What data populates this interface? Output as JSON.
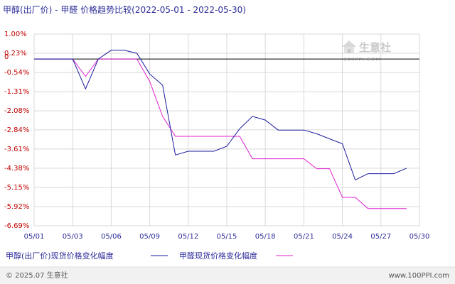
{
  "header": {
    "title": "甲醇(出厂价) - 甲醛 价格趋势比较(2022-05-01 - 2022-05-30)"
  },
  "watermark": {
    "name": "生意社",
    "url": "100PPI.COM"
  },
  "footer": {
    "copyright": "© 2025.07 生意社",
    "site": "www.100PPI.com"
  },
  "colors": {
    "series1": "#1a1a9e",
    "series2": "#e020d0",
    "grid": "#d8d8d8",
    "zero_line": "#000000"
  },
  "chart_data": {
    "type": "line",
    "title": "甲醇(出厂价) - 甲醛 价格趋势比较(2022-05-01 - 2022-05-30)",
    "xlabel": "",
    "ylabel": "",
    "x_start_day": 1,
    "x_end_day": 30,
    "ylim": [
      -6.69,
      1.0
    ],
    "y_ticks": [
      "1.00%",
      "0.23%",
      "-0.54%",
      "-1.31%",
      "-2.08%",
      "-2.84%",
      "-3.61%",
      "-4.38%",
      "-5.15%",
      "-5.92%",
      "-6.69%"
    ],
    "y_tick_values": [
      1.0,
      0.23,
      -0.54,
      -1.31,
      -2.08,
      -2.84,
      -3.61,
      -4.38,
      -5.15,
      -5.92,
      -6.69
    ],
    "zero_label": "0",
    "x_ticks": [
      "05/01",
      "05/03",
      "05/06",
      "05/09",
      "05/12",
      "05/15",
      "05/18",
      "05/21",
      "05/24",
      "05/27",
      "05/30"
    ],
    "x_tick_days": [
      1,
      4,
      7,
      10,
      13,
      16,
      19,
      22,
      25,
      28,
      31
    ],
    "grid": true,
    "legend_position": "bottom",
    "series": [
      {
        "name": "甲醇(出厂价)现货价格变化幅度",
        "points": [
          [
            1,
            0
          ],
          [
            2,
            0
          ],
          [
            3,
            0
          ],
          [
            4,
            0
          ],
          [
            5,
            -1.2
          ],
          [
            6,
            0
          ],
          [
            7,
            0.35
          ],
          [
            8,
            0.35
          ],
          [
            9,
            0.23
          ],
          [
            10,
            -0.6
          ],
          [
            11,
            -1.05
          ],
          [
            12,
            -3.85
          ],
          [
            13,
            -3.7
          ],
          [
            14,
            -3.7
          ],
          [
            15,
            -3.7
          ],
          [
            16,
            -3.5
          ],
          [
            17,
            -2.8
          ],
          [
            18,
            -2.3
          ],
          [
            19,
            -2.45
          ],
          [
            20,
            -2.85
          ],
          [
            21,
            -2.85
          ],
          [
            22,
            -2.85
          ],
          [
            23,
            -3.0
          ],
          [
            24,
            -3.2
          ],
          [
            25,
            -3.4
          ],
          [
            26,
            -4.85
          ],
          [
            27,
            -4.6
          ],
          [
            28,
            -4.6
          ],
          [
            29,
            -4.6
          ],
          [
            30,
            -4.38
          ]
        ]
      },
      {
        "name": "甲醛现货价格变化幅度",
        "points": [
          [
            1,
            0
          ],
          [
            2,
            0
          ],
          [
            3,
            0
          ],
          [
            4,
            0
          ],
          [
            5,
            -0.7
          ],
          [
            6,
            0
          ],
          [
            7,
            0
          ],
          [
            8,
            0
          ],
          [
            9,
            0
          ],
          [
            10,
            -0.9
          ],
          [
            11,
            -2.3
          ],
          [
            12,
            -3.1
          ],
          [
            13,
            -3.1
          ],
          [
            14,
            -3.1
          ],
          [
            15,
            -3.1
          ],
          [
            16,
            -3.1
          ],
          [
            17,
            -3.1
          ],
          [
            18,
            -4.0
          ],
          [
            19,
            -4.0
          ],
          [
            20,
            -4.0
          ],
          [
            21,
            -4.0
          ],
          [
            22,
            -4.0
          ],
          [
            23,
            -4.4
          ],
          [
            24,
            -4.4
          ],
          [
            25,
            -5.55
          ],
          [
            26,
            -5.55
          ],
          [
            27,
            -6.0
          ],
          [
            28,
            -6.0
          ],
          [
            29,
            -6.0
          ],
          [
            30,
            -6.0
          ]
        ]
      }
    ]
  }
}
